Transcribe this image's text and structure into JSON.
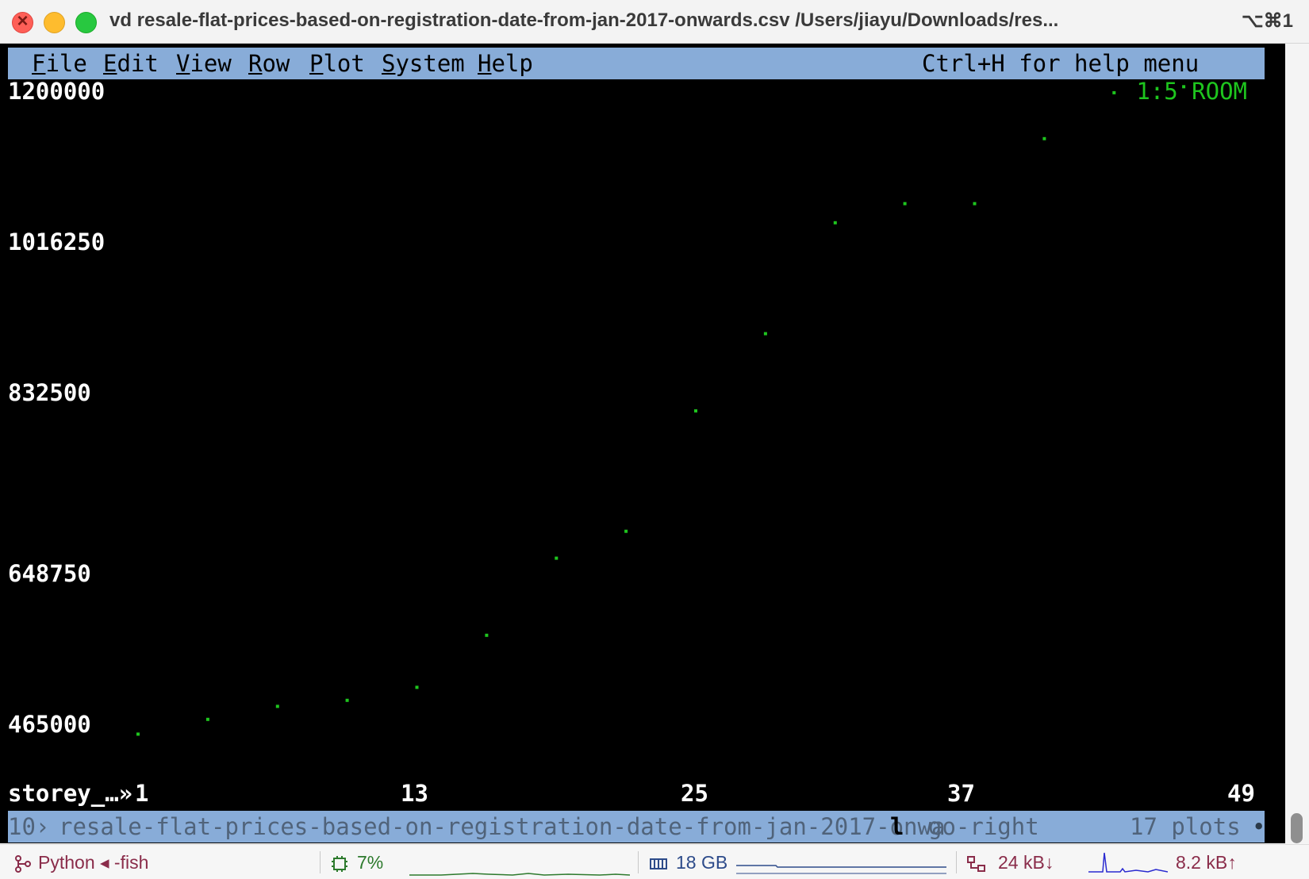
{
  "window": {
    "title": "vd resale-flat-prices-based-on-registration-date-from-jan-2017-onwards.csv /Users/jiayu/Downloads/res...",
    "shortcut": "⌥⌘1"
  },
  "menubar": {
    "items": [
      {
        "first": "F",
        "rest": "ile"
      },
      {
        "first": "E",
        "rest": "dit"
      },
      {
        "first": "V",
        "rest": "iew"
      },
      {
        "first": "R",
        "rest": "ow"
      },
      {
        "first": "P",
        "rest": "lot"
      },
      {
        "first": "S",
        "rest": "ystem"
      },
      {
        "first": "H",
        "rest": "elp"
      }
    ],
    "help_hint": "Ctrl+H for help menu"
  },
  "plot": {
    "legend": "1:5 ROOM",
    "legend_color": "#1ec51e",
    "xlabel": "storey_…»"
  },
  "chart_data": {
    "type": "scatter",
    "title": "",
    "xlabel": "storey_…»",
    "ylabel": "",
    "xlim": [
      1,
      49
    ],
    "ylim": [
      465000,
      1200000
    ],
    "xticks": [
      "1",
      "13",
      "25",
      "37",
      "49"
    ],
    "yticks": [
      "1200000",
      "1016250",
      "832500",
      "648750",
      "465000"
    ],
    "grid": false,
    "series": [
      {
        "name": "1:5 ROOM",
        "color": "#1ec51e",
        "points": [
          {
            "x": 1,
            "y": 461000
          },
          {
            "x": 4,
            "y": 478000
          },
          {
            "x": 7,
            "y": 493000
          },
          {
            "x": 10,
            "y": 500000
          },
          {
            "x": 13,
            "y": 515000
          },
          {
            "x": 16,
            "y": 575000
          },
          {
            "x": 19,
            "y": 664000
          },
          {
            "x": 22,
            "y": 695000
          },
          {
            "x": 25,
            "y": 834000
          },
          {
            "x": 28,
            "y": 923000
          },
          {
            "x": 31,
            "y": 1051000
          },
          {
            "x": 34,
            "y": 1073000
          },
          {
            "x": 37,
            "y": 1073000
          },
          {
            "x": 40,
            "y": 1148000
          },
          {
            "x": 43,
            "y": 1201000
          },
          {
            "x": 46,
            "y": 1208000
          }
        ]
      }
    ]
  },
  "statusbar": {
    "sheet_num": "10›",
    "sheet_name": "resale-flat-prices-based-on-registration-date-from-jan-2017-onwa",
    "keystroke": "l",
    "command": "go-right",
    "plot_count": "17 plots",
    "dot": "•"
  },
  "bottom": {
    "session": "Python ◂ -fish",
    "cpu": "7%",
    "memory": "18 GB",
    "net_down": "24 kB↓",
    "net_up": "8.2 kB↑"
  }
}
